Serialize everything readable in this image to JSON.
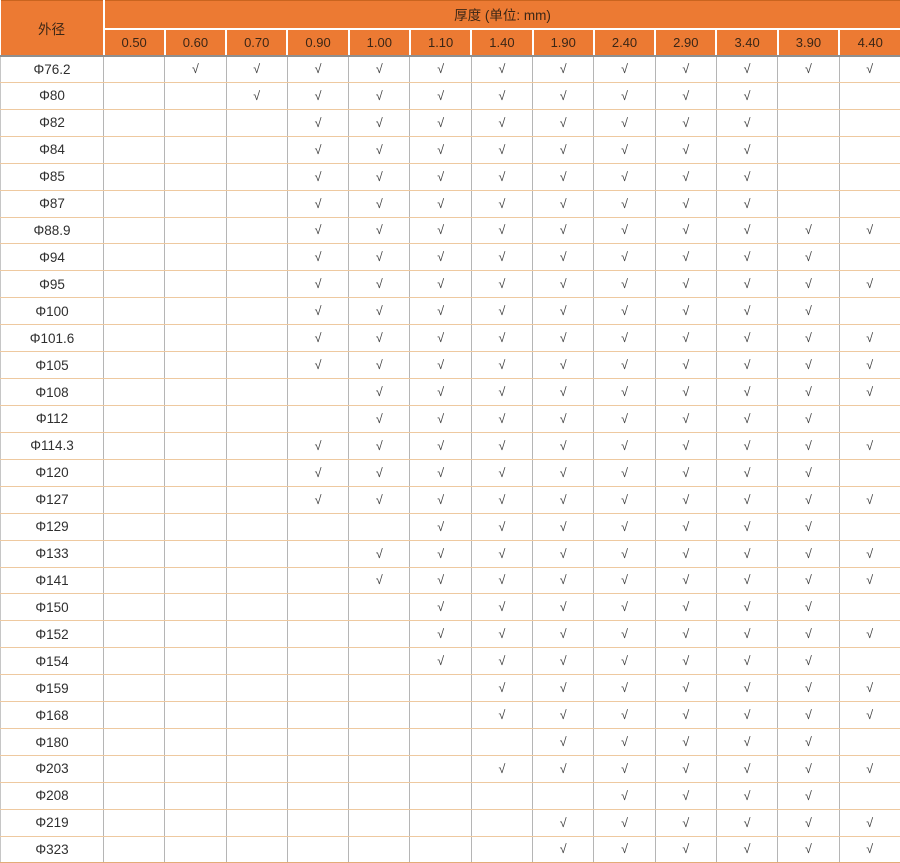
{
  "table": {
    "row_header_label": "外径",
    "title": "厚度 (单位: mm)",
    "check_symbol": "√"
  },
  "colors": {
    "header_bg": "#EC7A33",
    "header_text": "#3B2616",
    "header_separator": "#FFFFFF",
    "header_bottom_line": "#8F8F8F",
    "grid_horizontal": "#EEC9A0",
    "grid_vertical": "#B5B5B5",
    "check_text": "#404040"
  },
  "chart_data": {
    "type": "table",
    "title": "厚度 (单位: mm)",
    "row_header": "外径",
    "check_symbol": "√",
    "columns": [
      "0.50",
      "0.60",
      "0.70",
      "0.90",
      "1.00",
      "1.10",
      "1.40",
      "1.90",
      "2.40",
      "2.90",
      "3.40",
      "3.90",
      "4.40"
    ],
    "rows": [
      {
        "diameter": "Φ76.2",
        "available_thicknesses": [
          "0.60",
          "0.70",
          "0.90",
          "1.00",
          "1.10",
          "1.40",
          "1.90",
          "2.40",
          "2.90",
          "3.40",
          "3.90",
          "4.40"
        ]
      },
      {
        "diameter": "Φ80",
        "available_thicknesses": [
          "0.70",
          "0.90",
          "1.00",
          "1.10",
          "1.40",
          "1.90",
          "2.40",
          "2.90",
          "3.40"
        ]
      },
      {
        "diameter": "Φ82",
        "available_thicknesses": [
          "0.90",
          "1.00",
          "1.10",
          "1.40",
          "1.90",
          "2.40",
          "2.90",
          "3.40"
        ]
      },
      {
        "diameter": "Φ84",
        "available_thicknesses": [
          "0.90",
          "1.00",
          "1.10",
          "1.40",
          "1.90",
          "2.40",
          "2.90",
          "3.40"
        ]
      },
      {
        "diameter": "Φ85",
        "available_thicknesses": [
          "0.90",
          "1.00",
          "1.10",
          "1.40",
          "1.90",
          "2.40",
          "2.90",
          "3.40"
        ]
      },
      {
        "diameter": "Φ87",
        "available_thicknesses": [
          "0.90",
          "1.00",
          "1.10",
          "1.40",
          "1.90",
          "2.40",
          "2.90",
          "3.40"
        ]
      },
      {
        "diameter": "Φ88.9",
        "available_thicknesses": [
          "0.90",
          "1.00",
          "1.10",
          "1.40",
          "1.90",
          "2.40",
          "2.90",
          "3.40",
          "3.90",
          "4.40"
        ]
      },
      {
        "diameter": "Φ94",
        "available_thicknesses": [
          "0.90",
          "1.00",
          "1.10",
          "1.40",
          "1.90",
          "2.40",
          "2.90",
          "3.40",
          "3.90"
        ]
      },
      {
        "diameter": "Φ95",
        "available_thicknesses": [
          "0.90",
          "1.00",
          "1.10",
          "1.40",
          "1.90",
          "2.40",
          "2.90",
          "3.40",
          "3.90",
          "4.40"
        ]
      },
      {
        "diameter": "Φ100",
        "available_thicknesses": [
          "0.90",
          "1.00",
          "1.10",
          "1.40",
          "1.90",
          "2.40",
          "2.90",
          "3.40",
          "3.90"
        ]
      },
      {
        "diameter": "Φ101.6",
        "available_thicknesses": [
          "0.90",
          "1.00",
          "1.10",
          "1.40",
          "1.90",
          "2.40",
          "2.90",
          "3.40",
          "3.90",
          "4.40"
        ]
      },
      {
        "diameter": "Φ105",
        "available_thicknesses": [
          "0.90",
          "1.00",
          "1.10",
          "1.40",
          "1.90",
          "2.40",
          "2.90",
          "3.40",
          "3.90",
          "4.40"
        ]
      },
      {
        "diameter": "Φ108",
        "available_thicknesses": [
          "1.00",
          "1.10",
          "1.40",
          "1.90",
          "2.40",
          "2.90",
          "3.40",
          "3.90",
          "4.40"
        ]
      },
      {
        "diameter": "Φ112",
        "available_thicknesses": [
          "1.00",
          "1.10",
          "1.40",
          "1.90",
          "2.40",
          "2.90",
          "3.40",
          "3.90"
        ]
      },
      {
        "diameter": "Φ114.3",
        "available_thicknesses": [
          "0.90",
          "1.00",
          "1.10",
          "1.40",
          "1.90",
          "2.40",
          "2.90",
          "3.40",
          "3.90",
          "4.40"
        ]
      },
      {
        "diameter": "Φ120",
        "available_thicknesses": [
          "0.90",
          "1.00",
          "1.10",
          "1.40",
          "1.90",
          "2.40",
          "2.90",
          "3.40",
          "3.90"
        ]
      },
      {
        "diameter": "Φ127",
        "available_thicknesses": [
          "0.90",
          "1.00",
          "1.10",
          "1.40",
          "1.90",
          "2.40",
          "2.90",
          "3.40",
          "3.90",
          "4.40"
        ]
      },
      {
        "diameter": "Φ129",
        "available_thicknesses": [
          "1.10",
          "1.40",
          "1.90",
          "2.40",
          "2.90",
          "3.40",
          "3.90"
        ]
      },
      {
        "diameter": "Φ133",
        "available_thicknesses": [
          "1.00",
          "1.10",
          "1.40",
          "1.90",
          "2.40",
          "2.90",
          "3.40",
          "3.90",
          "4.40"
        ]
      },
      {
        "diameter": "Φ141",
        "available_thicknesses": [
          "1.00",
          "1.10",
          "1.40",
          "1.90",
          "2.40",
          "2.90",
          "3.40",
          "3.90",
          "4.40"
        ]
      },
      {
        "diameter": "Φ150",
        "available_thicknesses": [
          "1.10",
          "1.40",
          "1.90",
          "2.40",
          "2.90",
          "3.40",
          "3.90"
        ]
      },
      {
        "diameter": "Φ152",
        "available_thicknesses": [
          "1.10",
          "1.40",
          "1.90",
          "2.40",
          "2.90",
          "3.40",
          "3.90",
          "4.40"
        ]
      },
      {
        "diameter": "Φ154",
        "available_thicknesses": [
          "1.10",
          "1.40",
          "1.90",
          "2.40",
          "2.90",
          "3.40",
          "3.90"
        ]
      },
      {
        "diameter": "Φ159",
        "available_thicknesses": [
          "1.40",
          "1.90",
          "2.40",
          "2.90",
          "3.40",
          "3.90",
          "4.40"
        ]
      },
      {
        "diameter": "Φ168",
        "available_thicknesses": [
          "1.40",
          "1.90",
          "2.40",
          "2.90",
          "3.40",
          "3.90",
          "4.40"
        ]
      },
      {
        "diameter": "Φ180",
        "available_thicknesses": [
          "1.90",
          "2.40",
          "2.90",
          "3.40",
          "3.90"
        ]
      },
      {
        "diameter": "Φ203",
        "available_thicknesses": [
          "1.40",
          "1.90",
          "2.40",
          "2.90",
          "3.40",
          "3.90",
          "4.40"
        ]
      },
      {
        "diameter": "Φ208",
        "available_thicknesses": [
          "2.40",
          "2.90",
          "3.40",
          "3.90"
        ]
      },
      {
        "diameter": "Φ219",
        "available_thicknesses": [
          "1.90",
          "2.40",
          "2.90",
          "3.40",
          "3.90",
          "4.40"
        ]
      },
      {
        "diameter": "Φ323",
        "available_thicknesses": [
          "1.90",
          "2.40",
          "2.90",
          "3.40",
          "3.90",
          "4.40"
        ]
      }
    ]
  }
}
